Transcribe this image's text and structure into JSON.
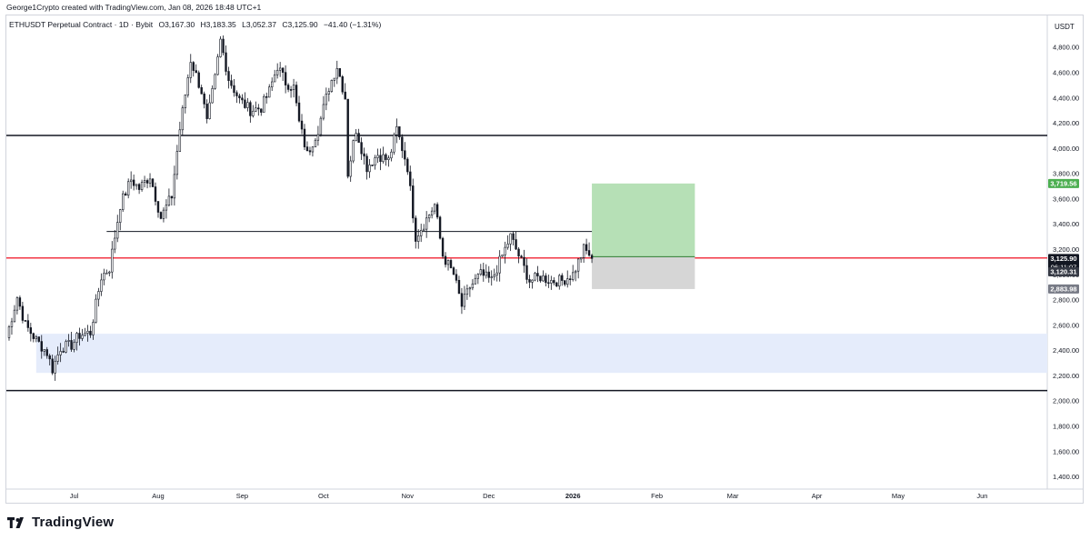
{
  "header": {
    "attribution": "George1Crypto created with TradingView.com, Jan 08, 2026 18:48 UTC+1"
  },
  "legend": {
    "symbol": "ETHUSDT Perpetual Contract · 1D · Bybit",
    "open": "O3,167.30",
    "high": "H3,183.35",
    "low": "L3,052.37",
    "close": "C3,125.90",
    "change": "−41.40 (−1.31%)"
  },
  "footer": {
    "brand": "TradingView"
  },
  "chart_data": {
    "type": "candlestick",
    "currency": "USDT",
    "ylim": [
      1300,
      5050
    ],
    "y_ticks": [
      "1,400.00",
      "1,600.00",
      "1,800.00",
      "2,000.00",
      "2,200.00",
      "2,400.00",
      "2,600.00",
      "2,800.00",
      "3,000.00",
      "3,200.00",
      "3,400.00",
      "3,600.00",
      "3,800.00",
      "4,000.00",
      "4,200.00",
      "4,400.00",
      "4,600.00",
      "4,800.00"
    ],
    "x_range": [
      "2025-06-06",
      "2026-06-25"
    ],
    "x_ticks": [
      {
        "label": "Jul",
        "date": "2025-07-01"
      },
      {
        "label": "Aug",
        "date": "2025-08-01"
      },
      {
        "label": "Sep",
        "date": "2025-09-01"
      },
      {
        "label": "Oct",
        "date": "2025-10-01"
      },
      {
        "label": "Nov",
        "date": "2025-11-01"
      },
      {
        "label": "Dec",
        "date": "2025-12-01"
      },
      {
        "label": "2026",
        "date": "2026-01-01"
      },
      {
        "label": "Feb",
        "date": "2026-02-01"
      },
      {
        "label": "Mar",
        "date": "2026-03-01"
      },
      {
        "label": "Apr",
        "date": "2026-04-01"
      },
      {
        "label": "May",
        "date": "2026-05-01"
      },
      {
        "label": "Jun",
        "date": "2026-06-01"
      }
    ],
    "up_color": "#131722",
    "down_color": "#131722",
    "last_close": 3125.9,
    "series_points": [
      [
        "2025-06-06",
        2500
      ],
      [
        "2025-06-10",
        2820
      ],
      [
        "2025-06-13",
        2600
      ],
      [
        "2025-06-17",
        2480
      ],
      [
        "2025-06-21",
        2380
      ],
      [
        "2025-06-23",
        2250
      ],
      [
        "2025-06-26",
        2420
      ],
      [
        "2025-06-30",
        2440
      ],
      [
        "2025-07-03",
        2520
      ],
      [
        "2025-07-07",
        2540
      ],
      [
        "2025-07-11",
        2980
      ],
      [
        "2025-07-14",
        3050
      ],
      [
        "2025-07-18",
        3550
      ],
      [
        "2025-07-22",
        3750
      ],
      [
        "2025-07-25",
        3680
      ],
      [
        "2025-07-29",
        3780
      ],
      [
        "2025-08-02",
        3450
      ],
      [
        "2025-08-06",
        3620
      ],
      [
        "2025-08-09",
        4150
      ],
      [
        "2025-08-13",
        4700
      ],
      [
        "2025-08-17",
        4450
      ],
      [
        "2025-08-19",
        4200
      ],
      [
        "2025-08-22",
        4550
      ],
      [
        "2025-08-24",
        4850
      ],
      [
        "2025-08-27",
        4550
      ],
      [
        "2025-08-31",
        4380
      ],
      [
        "2025-09-04",
        4300
      ],
      [
        "2025-09-08",
        4320
      ],
      [
        "2025-09-11",
        4450
      ],
      [
        "2025-09-14",
        4650
      ],
      [
        "2025-09-17",
        4520
      ],
      [
        "2025-09-20",
        4480
      ],
      [
        "2025-09-22",
        4200
      ],
      [
        "2025-09-25",
        3950
      ],
      [
        "2025-09-29",
        4150
      ],
      [
        "2025-10-03",
        4480
      ],
      [
        "2025-10-06",
        4650
      ],
      [
        "2025-10-09",
        4400
      ],
      [
        "2025-10-10",
        3800
      ],
      [
        "2025-10-13",
        4150
      ],
      [
        "2025-10-17",
        3850
      ],
      [
        "2025-10-21",
        3950
      ],
      [
        "2025-10-25",
        3900
      ],
      [
        "2025-10-28",
        4150
      ],
      [
        "2025-11-01",
        3850
      ],
      [
        "2025-11-04",
        3300
      ],
      [
        "2025-11-07",
        3400
      ],
      [
        "2025-11-11",
        3550
      ],
      [
        "2025-11-14",
        3150
      ],
      [
        "2025-11-18",
        3000
      ],
      [
        "2025-11-21",
        2750
      ],
      [
        "2025-11-24",
        2900
      ],
      [
        "2025-11-28",
        3000
      ],
      [
        "2025-12-02",
        2950
      ],
      [
        "2025-12-05",
        3100
      ],
      [
        "2025-12-09",
        3300
      ],
      [
        "2025-12-12",
        3150
      ],
      [
        "2025-12-16",
        2950
      ],
      [
        "2025-12-20",
        2980
      ],
      [
        "2025-12-24",
        2950
      ],
      [
        "2025-12-28",
        2950
      ],
      [
        "2026-01-01",
        3000
      ],
      [
        "2026-01-05",
        3200
      ],
      [
        "2026-01-07",
        3160
      ],
      [
        "2026-01-08",
        3125.9
      ]
    ],
    "horizontal_lines": [
      {
        "price": 4100,
        "color": "#131722"
      },
      {
        "price": 2080,
        "color": "#131722"
      },
      {
        "price": 3130,
        "color": "#f23645"
      },
      {
        "price": 3340,
        "color": "#131722",
        "from": "2025-07-13",
        "to": "2026-01-23"
      }
    ],
    "zones": [
      {
        "from": "2025-06-17",
        "to": "2026-06-25",
        "top": 2530,
        "bottom": 2220,
        "color": "#e5ecfb"
      }
    ],
    "long_position": {
      "from": "2026-01-08",
      "to": "2026-02-15",
      "entry": 3140,
      "target": 3719.56,
      "stop": 2883.98,
      "target_color": "#b6e0b6",
      "stop_color": "#d6d6d6"
    },
    "price_labels": [
      {
        "text": "3,719.56",
        "price": 3719.56,
        "bg": "#4caf50",
        "fg": "#ffffff"
      },
      {
        "text": "3,125.90",
        "sub": "06:11:07",
        "price": 3125.9,
        "bg": "#131722",
        "fg": "#ffffff"
      },
      {
        "text": "3,120.31",
        "price": 3020,
        "bg": "#363a45",
        "fg": "#ffffff"
      },
      {
        "text": "2,883.98",
        "price": 2883.98,
        "bg": "#787b86",
        "fg": "#ffffff"
      }
    ]
  }
}
